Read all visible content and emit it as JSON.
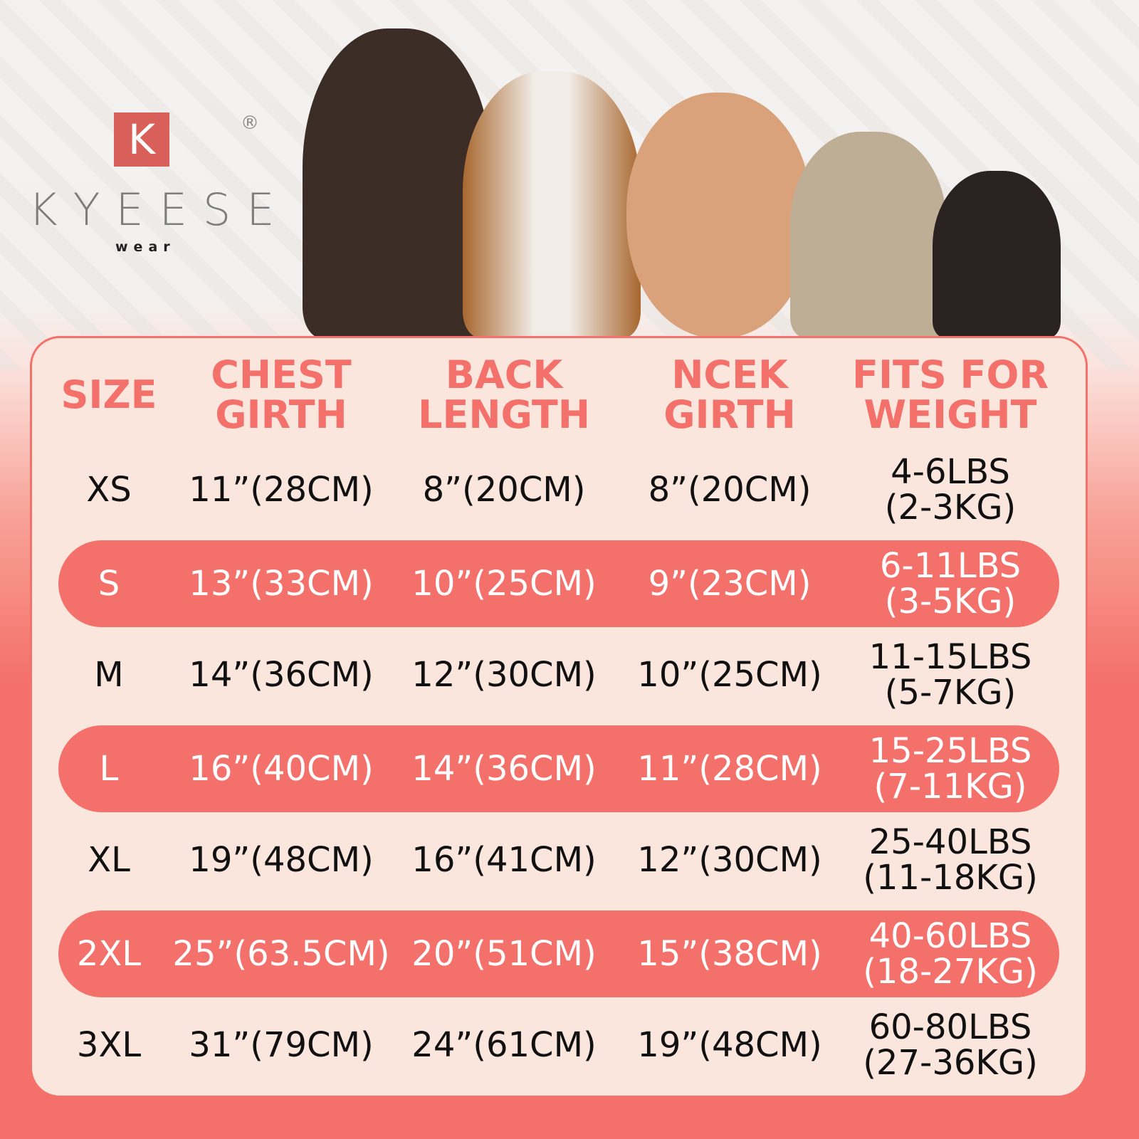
{
  "brand": {
    "mark": "K",
    "name": "KYEESE",
    "sub": "wear",
    "registered": "®"
  },
  "colors": {
    "accent": "#f4706a",
    "panel": "#fbe6de",
    "text": "#111111"
  },
  "headers": [
    "SIZE",
    "CHEST\nGIRTH",
    "BACK\nLENGTH",
    "NCEK\nGIRTH",
    "FITS FOR\nWEIGHT"
  ],
  "rows": [
    {
      "size": "XS",
      "chest": "11”(28CM)",
      "back": "8”(20CM)",
      "neck": "8”(20CM)",
      "weight": "4-6LBS\n(2-3KG)",
      "highlight": false
    },
    {
      "size": "S",
      "chest": "13”(33CM)",
      "back": "10”(25CM)",
      "neck": "9”(23CM)",
      "weight": "6-11LBS\n(3-5KG)",
      "highlight": true
    },
    {
      "size": "M",
      "chest": "14”(36CM)",
      "back": "12”(30CM)",
      "neck": "10”(25CM)",
      "weight": "11-15LBS\n(5-7KG)",
      "highlight": false
    },
    {
      "size": "L",
      "chest": "16”(40CM)",
      "back": "14”(36CM)",
      "neck": "11”(28CM)",
      "weight": "15-25LBS\n(7-11KG)",
      "highlight": true
    },
    {
      "size": "XL",
      "chest": "19”(48CM)",
      "back": "16”(41CM)",
      "neck": "12”(30CM)",
      "weight": "25-40LBS\n(11-18KG)",
      "highlight": false
    },
    {
      "size": "2XL",
      "chest": "25”(63.5CM)",
      "back": "20”(51CM)",
      "neck": "15”(38CM)",
      "weight": "40-60LBS\n(18-27KG)",
      "highlight": true
    },
    {
      "size": "3XL",
      "chest": "31”(79CM)",
      "back": "24”(61CM)",
      "neck": "19”(48CM)",
      "weight": "60-80LBS\n(27-36KG)",
      "highlight": false
    }
  ]
}
